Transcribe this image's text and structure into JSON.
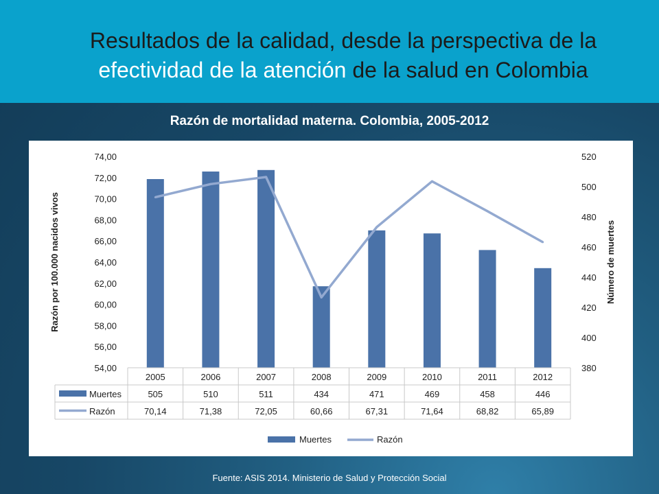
{
  "page": {
    "title_part1": "Resultados de la calidad, desde la perspectiva de la",
    "title_highlight": "efectividad de la atención",
    "title_part2": " de la salud en Colombia",
    "subtitle": "Razón de mortalidad materna. Colombia, 2005-2012",
    "source": "Fuente: ASIS 2014. Ministerio de Salud y Protección Social",
    "colors": {
      "header_bg": "#0aa2cc",
      "bar": "#4a72a8",
      "line": "#93a9d0"
    }
  },
  "chart_data": {
    "type": "bar",
    "categories": [
      "2005",
      "2006",
      "2007",
      "2008",
      "2009",
      "2010",
      "2011",
      "2012"
    ],
    "series": [
      {
        "name": "Muertes",
        "type": "bar",
        "axis": "right",
        "values": [
          505,
          510,
          511,
          434,
          471,
          469,
          458,
          446
        ],
        "labels": [
          "505",
          "510",
          "511",
          "434",
          "471",
          "469",
          "458",
          "446"
        ]
      },
      {
        "name": "Razón",
        "type": "line",
        "axis": "left",
        "values": [
          70.14,
          71.38,
          72.05,
          60.66,
          67.31,
          71.64,
          68.82,
          65.89
        ],
        "labels": [
          "70,14",
          "71,38",
          "72,05",
          "60,66",
          "67,31",
          "71,64",
          "68,82",
          "65,89"
        ]
      }
    ],
    "ylabel": "Razón por 100.000 nacidos vivos",
    "y2label": "Número de muertes",
    "ylim": [
      54,
      74
    ],
    "y2lim": [
      380,
      520
    ],
    "yticks": [
      "54,00",
      "56,00",
      "58,00",
      "60,00",
      "62,00",
      "64,00",
      "66,00",
      "68,00",
      "70,00",
      "72,00",
      "74,00"
    ],
    "y2ticks": [
      "380",
      "400",
      "420",
      "440",
      "460",
      "480",
      "500",
      "520"
    ],
    "legend": [
      "Muertes",
      "Razón"
    ],
    "legend_position": "bottom",
    "grid": false,
    "data_table": true
  }
}
